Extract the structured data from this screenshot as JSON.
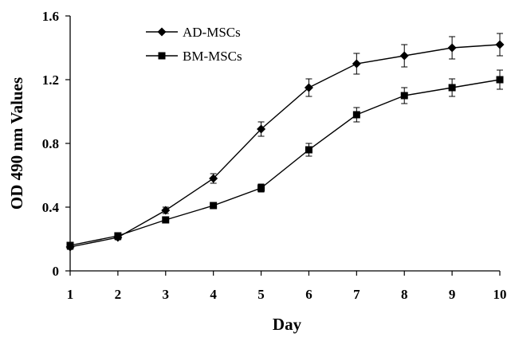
{
  "chart_data": {
    "type": "line",
    "title": "",
    "xlabel": "Day",
    "ylabel": "OD 490 nm Values",
    "x": [
      1,
      2,
      3,
      4,
      5,
      6,
      7,
      8,
      9,
      10
    ],
    "xlim": [
      1,
      10
    ],
    "ylim": [
      0,
      1.6
    ],
    "yticks": [
      "0",
      "0.4",
      "0.8",
      "1.2",
      "1.6"
    ],
    "grid": false,
    "legend_position": "top-left",
    "series": [
      {
        "name": "AD-MSCs",
        "marker": "diamond",
        "color": "#000000",
        "values": [
          0.15,
          0.21,
          0.38,
          0.58,
          0.89,
          1.15,
          1.3,
          1.35,
          1.4,
          1.42
        ],
        "errors": [
          0.015,
          0.015,
          0.02,
          0.03,
          0.045,
          0.055,
          0.065,
          0.07,
          0.07,
          0.07
        ]
      },
      {
        "name": "BM-MSCs",
        "marker": "square",
        "color": "#000000",
        "values": [
          0.16,
          0.22,
          0.32,
          0.41,
          0.52,
          0.76,
          0.98,
          1.1,
          1.15,
          1.2
        ],
        "errors": [
          0.015,
          0.015,
          0.02,
          0.02,
          0.025,
          0.04,
          0.045,
          0.05,
          0.055,
          0.06
        ]
      }
    ]
  }
}
